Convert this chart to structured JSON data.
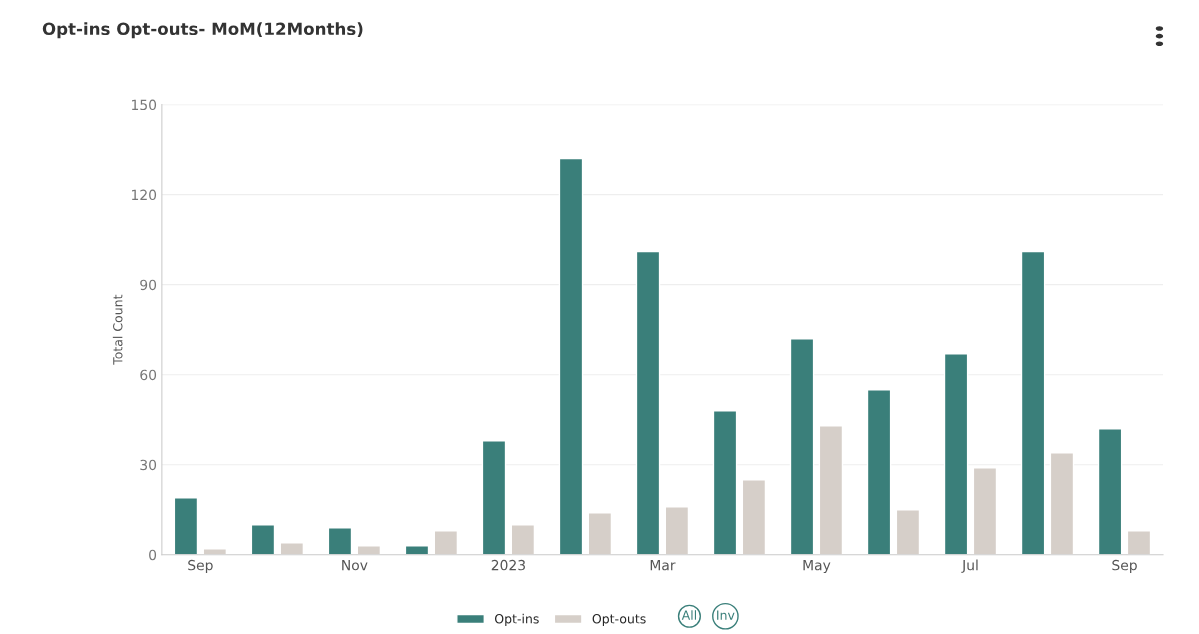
{
  "chart_data": {
    "type": "bar",
    "title": "Opt-ins Opt-outs- MoM(12Months)",
    "ylabel": "Total Count",
    "categories": [
      "Sep",
      null,
      "Nov",
      null,
      "2023",
      null,
      "Mar",
      null,
      "May",
      null,
      "Jul",
      null,
      "Sep"
    ],
    "series": [
      {
        "name": "Opt-ins",
        "color": "#3a7f7a",
        "values": [
          19,
          10,
          9,
          3,
          38,
          132,
          101,
          48,
          72,
          55,
          67,
          101,
          42
        ]
      },
      {
        "name": "Opt-outs",
        "color": "#d6cfc9",
        "values": [
          2,
          4,
          3,
          8,
          10,
          14,
          16,
          25,
          43,
          15,
          29,
          34,
          8
        ]
      }
    ],
    "ylim": [
      0,
      150
    ],
    "yticks": [
      0,
      30,
      60,
      90,
      120,
      150
    ],
    "grid": "y",
    "legend": "bottom",
    "annotations": [
      "All",
      "Inv"
    ]
  }
}
